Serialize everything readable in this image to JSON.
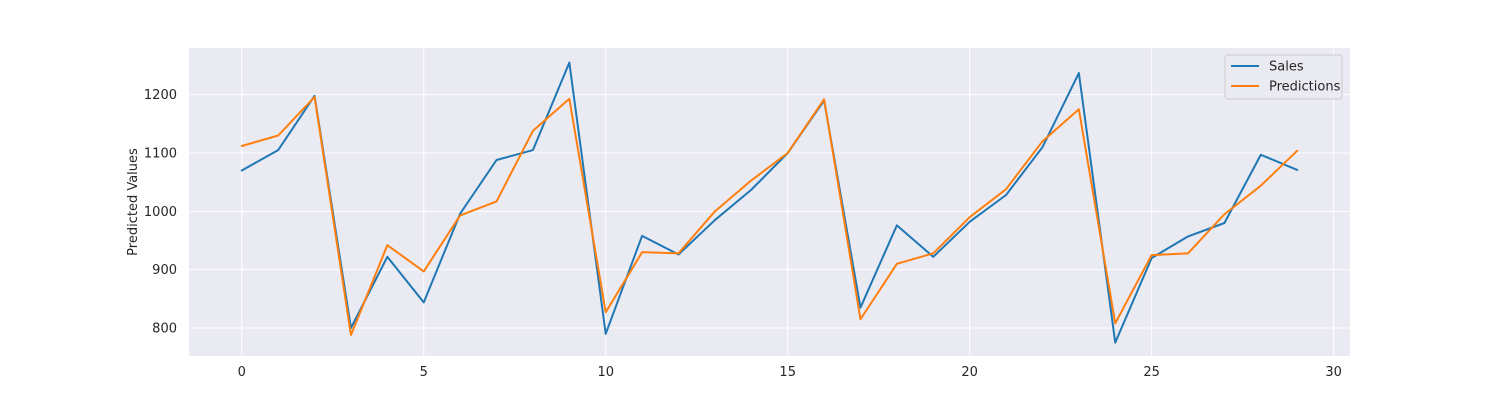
{
  "chart_data": {
    "type": "line",
    "title": "",
    "xlabel": "",
    "ylabel": "Predicted Values",
    "xlim": [
      -1.45,
      30.45
    ],
    "ylim": [
      752,
      1280
    ],
    "xticks": [
      0,
      5,
      10,
      15,
      20,
      25,
      30
    ],
    "yticks": [
      800,
      900,
      1000,
      1100,
      1200
    ],
    "grid": true,
    "legend": "top-right",
    "x": [
      0,
      1,
      2,
      3,
      4,
      5,
      6,
      7,
      8,
      9,
      10,
      11,
      12,
      13,
      14,
      15,
      16,
      17,
      18,
      19,
      20,
      21,
      22,
      23,
      24,
      25,
      26,
      27,
      28,
      29
    ],
    "series": [
      {
        "name": "Sales",
        "color": "#1f77b4",
        "values": [
          1070,
          1105,
          1198,
          800,
          922,
          844,
          996,
          1088,
          1105,
          1255,
          790,
          958,
          926,
          985,
          1037,
          1100,
          1190,
          835,
          976,
          922,
          982,
          1028,
          1110,
          1237,
          775,
          920,
          957,
          980,
          1097,
          1071
        ]
      },
      {
        "name": "Predictions",
        "color": "#ff7f0e",
        "values": [
          1112,
          1130,
          1196,
          788,
          942,
          897,
          993,
          1017,
          1138,
          1193,
          827,
          930,
          928,
          1000,
          1053,
          1100,
          1192,
          815,
          910,
          928,
          990,
          1038,
          1120,
          1175,
          808,
          925,
          928,
          995,
          1044,
          1104
        ]
      }
    ]
  }
}
